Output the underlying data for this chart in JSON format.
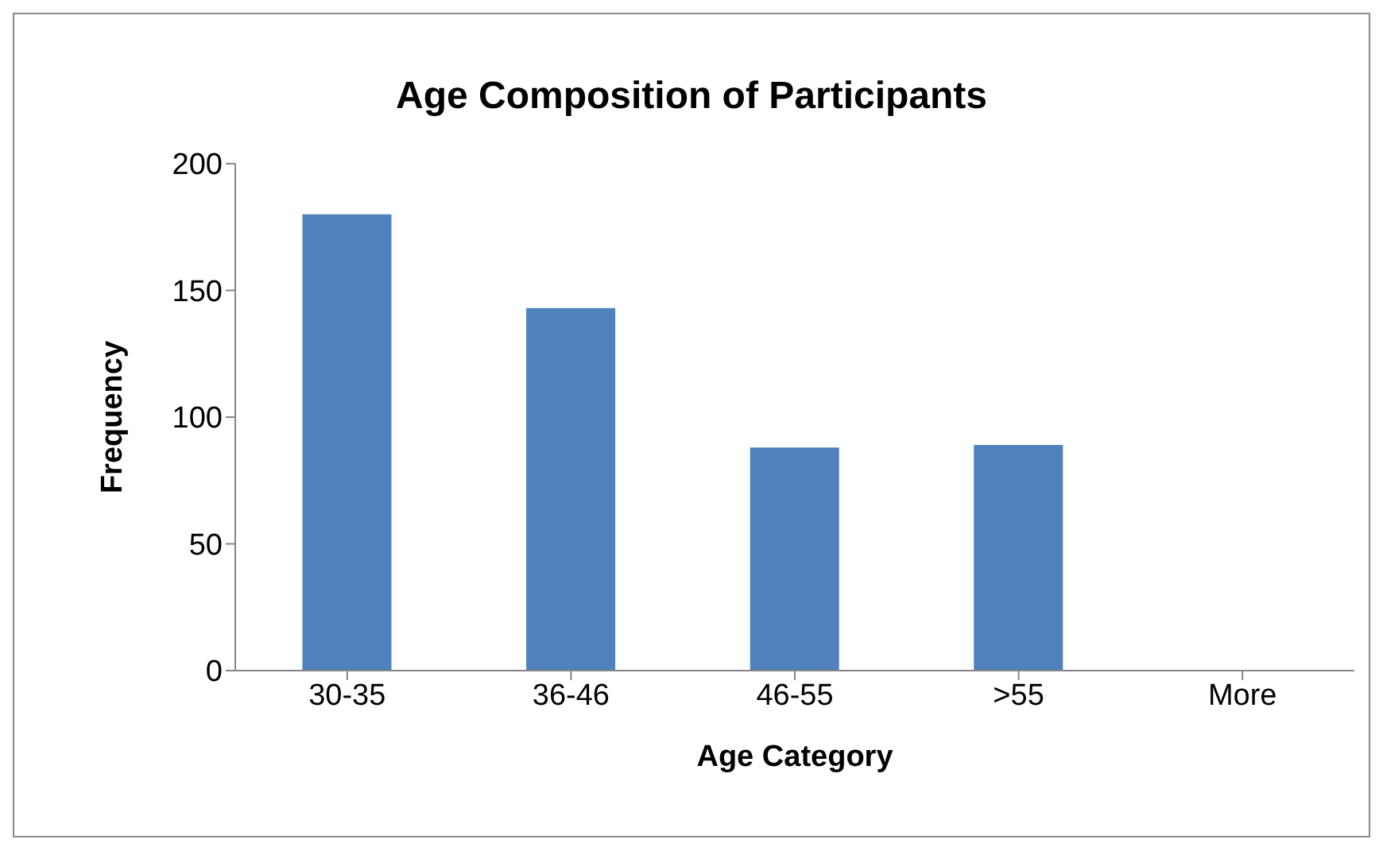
{
  "chart_data": {
    "type": "bar",
    "title": "Age Composition of Participants",
    "xlabel": "Age Category",
    "ylabel": "Frequency",
    "categories": [
      "30-35",
      "36-46",
      "46-55",
      ">55",
      "More"
    ],
    "values": [
      180,
      143,
      88,
      89,
      0
    ],
    "color": "#4f81bd",
    "ylim": [
      0,
      200
    ],
    "yticks": [
      0,
      50,
      100,
      150,
      200
    ],
    "grid": false,
    "legend": false
  }
}
